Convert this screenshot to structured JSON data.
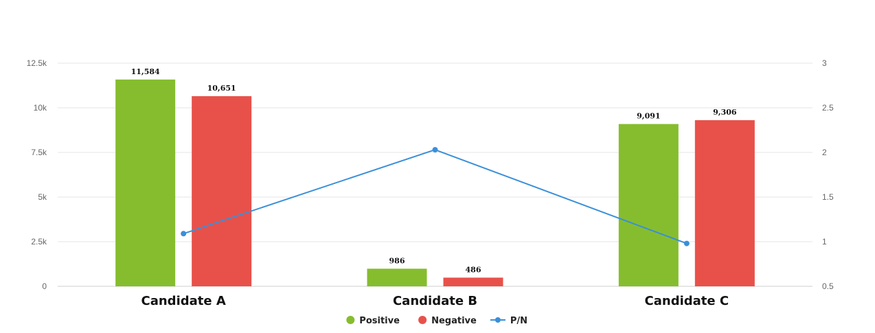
{
  "chart_data": {
    "type": "bar",
    "categories": [
      "Candidate A",
      "Candidate B",
      "Candidate C"
    ],
    "series": [
      {
        "name": "Positive",
        "type": "bar",
        "axis": "left",
        "values": [
          11584,
          986,
          9091
        ],
        "labels": [
          "11,584",
          "986",
          "9,091"
        ],
        "color": "#86bd2e"
      },
      {
        "name": "Negative",
        "type": "bar",
        "axis": "left",
        "values": [
          10651,
          486,
          9306
        ],
        "labels": [
          "10,651",
          "486",
          "9,306"
        ],
        "color": "#e8514a"
      },
      {
        "name": "P/N",
        "type": "line",
        "axis": "right",
        "values": [
          1.09,
          2.03,
          0.98
        ],
        "color": "#3a8fd9"
      }
    ],
    "y_left": {
      "min": 0,
      "max": 12500,
      "ticks": [
        0,
        2500,
        5000,
        7500,
        10000,
        12500
      ],
      "tick_labels": [
        "0",
        "2.5k",
        "5k",
        "7.5k",
        "10k",
        "12.5k"
      ]
    },
    "y_right": {
      "min": 0.5,
      "max": 3,
      "ticks": [
        0.5,
        1,
        1.5,
        2,
        2.5,
        3
      ],
      "tick_labels": [
        "0.5",
        "1",
        "1.5",
        "2",
        "2.5",
        "3"
      ]
    },
    "grid": true,
    "legend": "bottom-center"
  }
}
